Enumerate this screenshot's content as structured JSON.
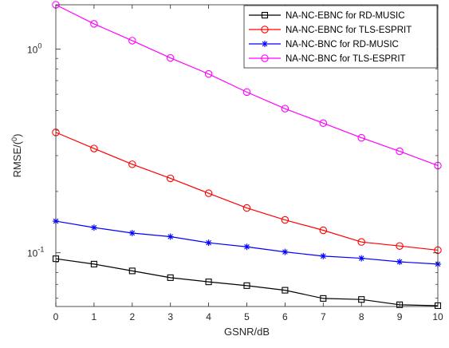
{
  "chart_data": {
    "type": "line",
    "title": "",
    "xlabel": "GSNR/dB",
    "ylabel": "RMSE/(",
    "ylabel_sup": "0",
    "ylabel_close": ")",
    "y_scale": "log",
    "xlim": [
      0,
      10
    ],
    "ylim": [
      0.0545,
      1.65
    ],
    "x": [
      0,
      1,
      2,
      3,
      4,
      5,
      6,
      7,
      8,
      9,
      10
    ],
    "xticks": [
      "0",
      "1",
      "2",
      "3",
      "4",
      "5",
      "6",
      "7",
      "8",
      "9",
      "10"
    ],
    "yticks": [
      {
        "base": "10",
        "exp": "-1",
        "value": 0.1
      },
      {
        "base": "10",
        "exp": "0",
        "value": 1
      }
    ],
    "grid": false,
    "legend_position": "top-right",
    "series": [
      {
        "name": "NA-NC-EBNC for RD-MUSIC",
        "color": "#000000",
        "marker": "square",
        "values": [
          0.0935,
          0.088,
          0.0815,
          0.0755,
          0.072,
          0.069,
          0.0655,
          0.0597,
          0.059,
          0.0556,
          0.055
        ]
      },
      {
        "name": "NA-NC-EBNC for TLS-ESPRIT",
        "color": "#ff0000",
        "marker": "circle",
        "values": [
          0.39,
          0.325,
          0.272,
          0.232,
          0.196,
          0.166,
          0.145,
          0.129,
          0.113,
          0.108,
          0.103
        ]
      },
      {
        "name": "NA-NC-BNC for RD-MUSIC",
        "color": "#0000ff",
        "marker": "asterisk",
        "values": [
          0.143,
          0.133,
          0.125,
          0.12,
          0.112,
          0.107,
          0.101,
          0.0963,
          0.094,
          0.0903,
          0.088
        ]
      },
      {
        "name": "NA-NC-BNC for TLS-ESPRIT",
        "color": "#ff00ff",
        "marker": "circle",
        "values": [
          1.65,
          1.33,
          1.1,
          0.905,
          0.755,
          0.615,
          0.51,
          0.433,
          0.367,
          0.315,
          0.268
        ]
      }
    ]
  }
}
